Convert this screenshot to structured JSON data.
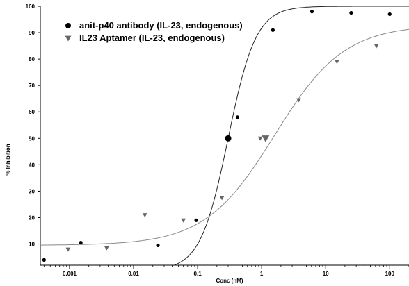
{
  "chart_data": {
    "type": "scatter",
    "xlabel": "Conc  (nM)",
    "ylabel": "% Inhibition",
    "xscale": "log",
    "xlim": [
      0.00035,
      200
    ],
    "ylim": [
      2,
      100
    ],
    "x_ticks": [
      0.001,
      0.01,
      0.1,
      1,
      10,
      100
    ],
    "x_tick_labels": [
      "0.001",
      "0.01",
      "0.1",
      "1",
      "10",
      "100"
    ],
    "y_ticks": [
      10,
      20,
      30,
      40,
      50,
      60,
      70,
      80,
      90,
      100
    ],
    "y_tick_labels": [
      "10",
      "20",
      "30",
      "40",
      "50",
      "60",
      "70",
      "80",
      "90",
      "100"
    ],
    "grid": false,
    "legend_position": "top-left",
    "series": [
      {
        "name": "anit-p40 antibody (IL-23, endogenous)",
        "marker": "circle",
        "color": "#000000",
        "x": [
          0.0004,
          0.0015,
          0.024,
          0.095,
          0.42,
          1.5,
          6.1,
          25,
          100
        ],
        "y": [
          4,
          10.5,
          9.5,
          19,
          58,
          91,
          98,
          97.5,
          97
        ],
        "midpoint": {
          "x": 0.3,
          "y": 50
        },
        "fit": {
          "bottom": 0,
          "top": 100,
          "ec50": 0.3,
          "hill": 2.0
        }
      },
      {
        "name": "IL23 Aptamer (IL-23, endogenous)",
        "marker": "triangle-down",
        "color": "#666666",
        "x": [
          0.00095,
          0.0038,
          0.015,
          0.06,
          0.24,
          0.95,
          3.8,
          15,
          62
        ],
        "y": [
          8,
          8.5,
          21,
          19,
          27.5,
          50,
          64.5,
          79,
          85
        ],
        "midpoint": {
          "x": 1.15,
          "y": 50
        },
        "fit": {
          "bottom": 9.5,
          "top": 93,
          "ec50": 1.6,
          "hill": 0.8
        }
      }
    ]
  }
}
